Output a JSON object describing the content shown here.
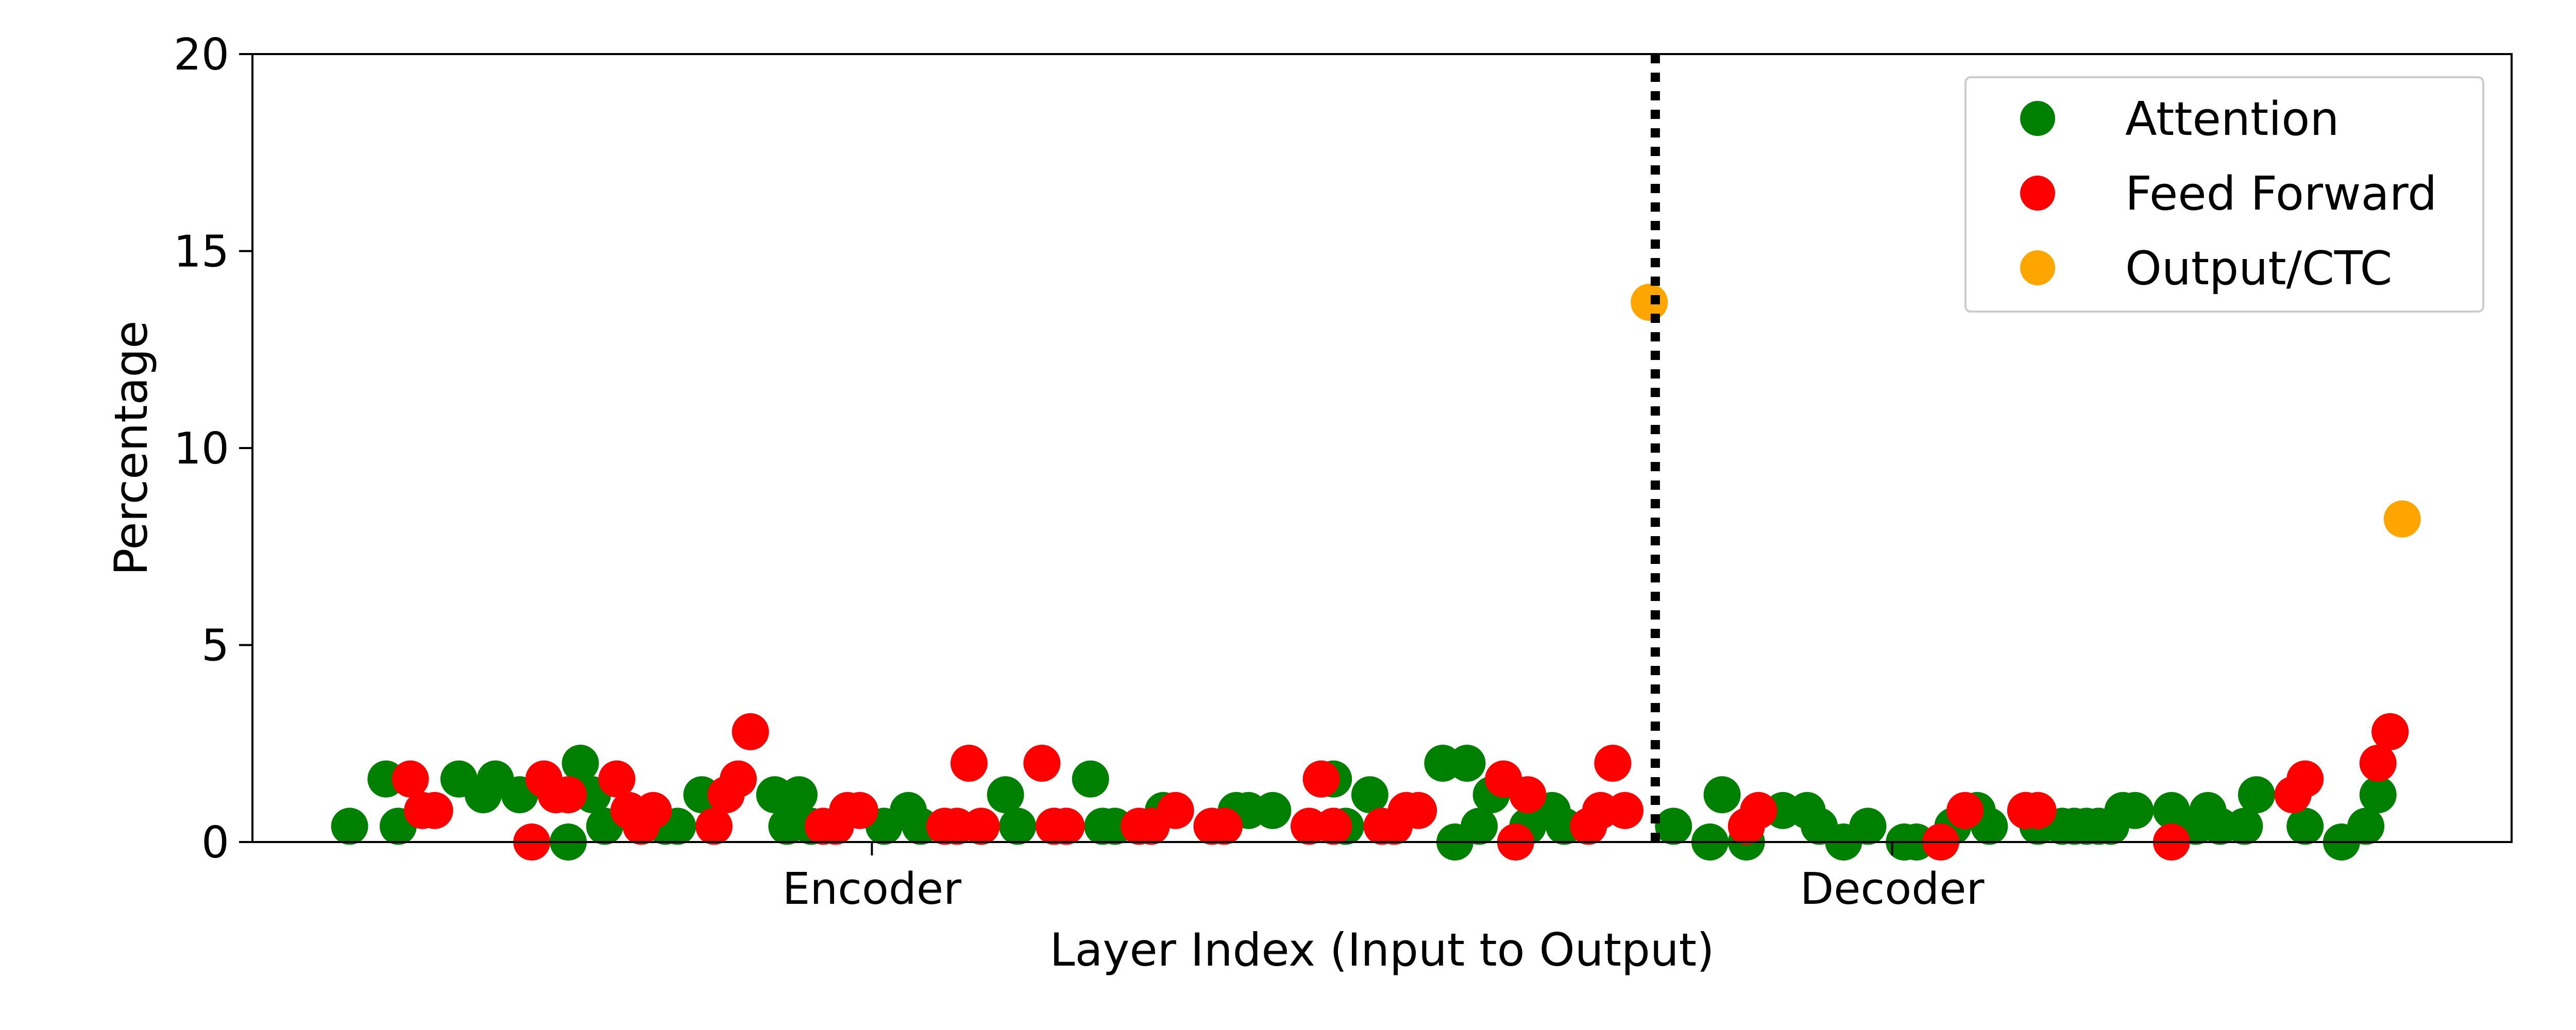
{
  "chart_data": {
    "type": "scatter",
    "title": "",
    "xlabel": "Layer Index (Input to Output)",
    "ylabel": "Percentage",
    "ylim": [
      0,
      20
    ],
    "yticks": [
      0,
      5,
      10,
      15,
      20
    ],
    "xticks": [
      {
        "label": "Encoder",
        "index": 51
      },
      {
        "label": "Decoder",
        "index": 135
      }
    ],
    "divider": {
      "index": 115.5,
      "style": "dotted",
      "color": "#000000"
    },
    "grid": false,
    "legend": "top-right",
    "series": [
      {
        "name": "Attention",
        "color": "#008000",
        "points": [
          [
            8,
            0.4
          ],
          [
            11,
            1.6
          ],
          [
            12,
            0.4
          ],
          [
            17,
            1.6
          ],
          [
            19,
            1.2
          ],
          [
            20,
            1.6
          ],
          [
            22,
            1.2
          ],
          [
            26,
            0
          ],
          [
            27,
            2.0
          ],
          [
            28,
            1.2
          ],
          [
            29,
            0.4
          ],
          [
            34,
            0.4
          ],
          [
            35,
            0.4
          ],
          [
            37,
            1.2
          ],
          [
            43,
            1.2
          ],
          [
            44,
            0.4
          ],
          [
            45,
            1.2
          ],
          [
            46,
            0.4
          ],
          [
            52,
            0.4
          ],
          [
            54,
            0.8
          ],
          [
            55,
            0.4
          ],
          [
            60,
            0.4
          ],
          [
            62,
            1.2
          ],
          [
            63,
            0.4
          ],
          [
            66,
            0.4
          ],
          [
            69,
            1.6
          ],
          [
            70,
            0.4
          ],
          [
            71,
            0.4
          ],
          [
            75,
            0.8
          ],
          [
            81,
            0.8
          ],
          [
            82,
            0.8
          ],
          [
            84,
            0.8
          ],
          [
            89,
            1.6
          ],
          [
            90,
            0.4
          ],
          [
            92,
            1.2
          ],
          [
            98,
            2.0
          ],
          [
            99,
            0
          ],
          [
            100,
            2.0
          ],
          [
            101,
            0.4
          ],
          [
            102,
            1.2
          ],
          [
            105,
            0.4
          ],
          [
            106,
            0.8
          ],
          [
            107,
            0.8
          ],
          [
            108,
            0.4
          ],
          [
            117,
            0.4
          ],
          [
            120,
            0
          ],
          [
            121,
            1.2
          ],
          [
            123,
            0
          ],
          [
            126,
            0.8
          ],
          [
            128,
            0.8
          ],
          [
            129,
            0.4
          ],
          [
            131,
            0
          ],
          [
            133,
            0.4
          ],
          [
            136,
            0
          ],
          [
            137,
            0
          ],
          [
            140,
            0.4
          ],
          [
            142,
            0.8
          ],
          [
            143,
            0.4
          ],
          [
            146,
            0.8
          ],
          [
            147,
            0.4
          ],
          [
            149,
            0.4
          ],
          [
            150,
            0.4
          ],
          [
            151,
            0.4
          ],
          [
            152,
            0.4
          ],
          [
            153,
            0.4
          ],
          [
            154,
            0.8
          ],
          [
            155,
            0.8
          ],
          [
            158,
            0.8
          ],
          [
            160,
            0.4
          ],
          [
            161,
            0.8
          ],
          [
            162,
            0.4
          ],
          [
            164,
            0.4
          ],
          [
            165,
            1.2
          ],
          [
            169,
            0.4
          ],
          [
            172,
            0
          ],
          [
            174,
            0.4
          ],
          [
            175,
            1.2
          ],
          [
            176,
            2.8
          ]
        ]
      },
      {
        "name": "Feed Forward",
        "color": "#ff0000",
        "points": [
          [
            13,
            1.6
          ],
          [
            14,
            0.8
          ],
          [
            15,
            0.8
          ],
          [
            23,
            0
          ],
          [
            24,
            1.6
          ],
          [
            25,
            1.2
          ],
          [
            26,
            1.2
          ],
          [
            30,
            1.6
          ],
          [
            31,
            0.8
          ],
          [
            32,
            0.4
          ],
          [
            33,
            0.8
          ],
          [
            38,
            0.4
          ],
          [
            39,
            1.2
          ],
          [
            40,
            1.6
          ],
          [
            41,
            2.8
          ],
          [
            47,
            0.4
          ],
          [
            48,
            0.4
          ],
          [
            49,
            0.8
          ],
          [
            50,
            0.8
          ],
          [
            57,
            0.4
          ],
          [
            58,
            0.4
          ],
          [
            59,
            2.0
          ],
          [
            60,
            0.4
          ],
          [
            65,
            2.0
          ],
          [
            66,
            0.4
          ],
          [
            67,
            0.4
          ],
          [
            73,
            0.4
          ],
          [
            74,
            0.4
          ],
          [
            76,
            0.8
          ],
          [
            79,
            0.4
          ],
          [
            80,
            0.4
          ],
          [
            87,
            0.4
          ],
          [
            88,
            1.6
          ],
          [
            89,
            0.4
          ],
          [
            93,
            0.4
          ],
          [
            94,
            0.4
          ],
          [
            95,
            0.8
          ],
          [
            96,
            0.8
          ],
          [
            103,
            1.6
          ],
          [
            104,
            0
          ],
          [
            105,
            1.2
          ],
          [
            110,
            0.4
          ],
          [
            111,
            0.8
          ],
          [
            112,
            2.0
          ],
          [
            113,
            0.8
          ],
          [
            123,
            0.4
          ],
          [
            124,
            0.8
          ],
          [
            139,
            0
          ],
          [
            141,
            0.8
          ],
          [
            146,
            0.8
          ],
          [
            147,
            0.8
          ],
          [
            158,
            0
          ],
          [
            168,
            1.2
          ],
          [
            169,
            1.6
          ],
          [
            175,
            2.0
          ],
          [
            176,
            2.8
          ]
        ]
      },
      {
        "name": "Output/CTC",
        "color": "#ffa500",
        "points": [
          [
            115,
            13.7
          ],
          [
            177,
            8.2
          ]
        ]
      }
    ]
  }
}
